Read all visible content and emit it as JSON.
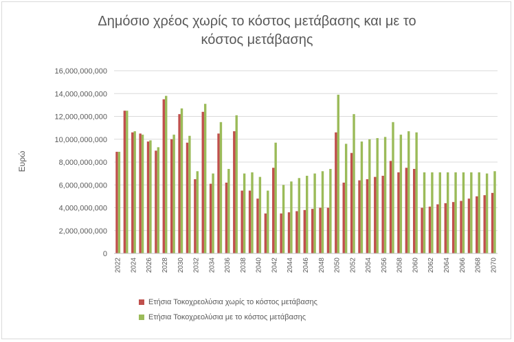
{
  "chart_data": {
    "type": "bar",
    "title_line1": "Δημόσιο χρέος χωρίς το κόστος μετάβασης και με το",
    "title_line2": "κόστος μετάβασης",
    "ylabel": "Ευρώ",
    "xlabel": "",
    "ylim": [
      0,
      16000000000
    ],
    "yticks": [
      "0",
      "2,000,000,000",
      "4,000,000,000",
      "6,000,000,000",
      "8,000,000,000",
      "10,000,000,000",
      "12,000,000,000",
      "14,000,000,000",
      "16,000,000,000"
    ],
    "ytick_values": [
      0,
      2000000000,
      4000000000,
      6000000000,
      8000000000,
      10000000000,
      12000000000,
      14000000000,
      16000000000
    ],
    "grid": true,
    "legend_position": "bottom",
    "categories": [
      2022,
      2023,
      2024,
      2025,
      2026,
      2027,
      2028,
      2029,
      2030,
      2031,
      2032,
      2033,
      2034,
      2035,
      2036,
      2037,
      2038,
      2039,
      2040,
      2041,
      2042,
      2043,
      2044,
      2045,
      2046,
      2047,
      2048,
      2049,
      2050,
      2051,
      2052,
      2053,
      2054,
      2055,
      2056,
      2057,
      2058,
      2059,
      2060,
      2061,
      2062,
      2063,
      2064,
      2065,
      2066,
      2067,
      2068,
      2069,
      2070
    ],
    "xtick_labels": [
      "2022",
      "",
      "2024",
      "",
      "2026",
      "",
      "2028",
      "",
      "2030",
      "",
      "2032",
      "",
      "2034",
      "",
      "2036",
      "",
      "2038",
      "",
      "2040",
      "",
      "2042",
      "",
      "2044",
      "",
      "2046",
      "",
      "2048",
      "",
      "2050",
      "",
      "2052",
      "",
      "2054",
      "",
      "2056",
      "",
      "2058",
      "",
      "2060",
      "",
      "2062",
      "",
      "2064",
      "",
      "2066",
      "",
      "2068",
      "",
      "2070"
    ],
    "series": [
      {
        "name": "Ετήσια Τοκοχρεολύσια χωρίς το κόστος μετάβασης",
        "color": "#c0504d",
        "values": [
          8900000000,
          12500000000,
          10600000000,
          10500000000,
          9800000000,
          9000000000,
          13500000000,
          10000000000,
          12200000000,
          9700000000,
          6500000000,
          12400000000,
          6100000000,
          10500000000,
          6200000000,
          10700000000,
          5500000000,
          5500000000,
          4800000000,
          3500000000,
          7500000000,
          3500000000,
          3600000000,
          3700000000,
          3800000000,
          3900000000,
          4000000000,
          4000000000,
          10600000000,
          6200000000,
          8800000000,
          6400000000,
          6500000000,
          6700000000,
          6800000000,
          8100000000,
          7100000000,
          7500000000,
          7400000000,
          4000000000,
          4100000000,
          4300000000,
          4400000000,
          4500000000,
          4600000000,
          4800000000,
          5000000000,
          5100000000,
          5300000000
        ]
      },
      {
        "name": "Ετήσια Τοκοχρεολύσια με το κόστος μετάβασης",
        "color": "#9bbb59",
        "values": [
          8900000000,
          12500000000,
          10700000000,
          10400000000,
          9900000000,
          9300000000,
          13800000000,
          10400000000,
          12700000000,
          10300000000,
          7200000000,
          13100000000,
          7000000000,
          11500000000,
          7400000000,
          12100000000,
          7000000000,
          7100000000,
          6700000000,
          5500000000,
          9700000000,
          6000000000,
          6300000000,
          6600000000,
          6800000000,
          7000000000,
          7200000000,
          7400000000,
          13900000000,
          9600000000,
          12200000000,
          9800000000,
          10000000000,
          10100000000,
          10200000000,
          11500000000,
          10400000000,
          10700000000,
          10600000000,
          7100000000,
          7100000000,
          7100000000,
          7100000000,
          7100000000,
          7100000000,
          7100000000,
          7100000000,
          7000000000,
          7200000000
        ]
      }
    ]
  }
}
